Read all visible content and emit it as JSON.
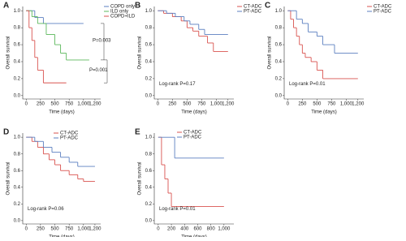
{
  "chart_data": [
    {
      "type": "line",
      "panel": "A",
      "xlabel": "Time (days)",
      "ylabel": "Overall survival",
      "xlim": [
        -60,
        1300
      ],
      "ylim": [
        -0.04,
        1.05
      ],
      "xticks": [
        0,
        250,
        500,
        750,
        {
          "value": 1000,
          "label": "1,000"
        },
        {
          "value": 1200,
          "label": "1,200"
        }
      ],
      "yticks": [
        {
          "value": 0,
          "label": "0.0"
        },
        0.2,
        0.4,
        0.6,
        0.8,
        {
          "value": 1,
          "label": "1.0"
        }
      ],
      "annotations": [
        "P=0.003",
        "P=0.001"
      ],
      "series": [
        {
          "name": "COPD only",
          "color": "#5b7fc0",
          "x": [
            0,
            150,
            300,
            1000
          ],
          "values": [
            1,
            0.92,
            0.85,
            0.85
          ]
        },
        {
          "name": "ILD only",
          "color": "#5cb85c",
          "x": [
            0,
            100,
            200,
            350,
            500,
            600,
            700,
            1100
          ],
          "values": [
            1,
            0.93,
            0.85,
            0.72,
            0.6,
            0.5,
            0.42,
            0.42
          ]
        },
        {
          "name": "COPD+ILD",
          "color": "#d9534f",
          "x": [
            0,
            50,
            100,
            150,
            200,
            300,
            700
          ],
          "values": [
            1,
            0.8,
            0.65,
            0.45,
            0.3,
            0.15,
            0.15
          ]
        }
      ]
    },
    {
      "type": "line",
      "panel": "B",
      "xlabel": "Time (days)",
      "ylabel": "Overall survival",
      "xlim": [
        -60,
        1300
      ],
      "ylim": [
        -0.04,
        1.05
      ],
      "xticks": [
        0,
        250,
        500,
        750,
        {
          "value": 1000,
          "label": "1,000"
        },
        {
          "value": 1200,
          "label": "1,200"
        }
      ],
      "yticks": [
        {
          "value": 0,
          "label": "0.0"
        },
        0.2,
        0.4,
        0.6,
        0.8,
        {
          "value": 1,
          "label": "1.0"
        }
      ],
      "annotations": [
        "Log-rank P=0.17"
      ],
      "series": [
        {
          "name": "CT-ADC",
          "color": "#d9534f",
          "x": [
            0,
            100,
            250,
            400,
            500,
            600,
            700,
            850,
            950,
            1200
          ],
          "values": [
            1,
            0.97,
            0.93,
            0.88,
            0.8,
            0.76,
            0.7,
            0.62,
            0.52,
            0.52
          ]
        },
        {
          "name": "PT-ADC",
          "color": "#5b7fc0",
          "x": [
            0,
            150,
            300,
            450,
            550,
            700,
            800,
            1200
          ],
          "values": [
            1,
            0.97,
            0.93,
            0.88,
            0.84,
            0.78,
            0.72,
            0.72
          ]
        }
      ]
    },
    {
      "type": "line",
      "panel": "C",
      "xlabel": "Time (days)",
      "ylabel": "Overall survival",
      "xlim": [
        -60,
        1300
      ],
      "ylim": [
        -0.04,
        1.05
      ],
      "xticks": [
        0,
        250,
        500,
        750,
        {
          "value": 1000,
          "label": "1,000"
        },
        {
          "value": 1200,
          "label": "1,200"
        }
      ],
      "yticks": [
        {
          "value": 0,
          "label": "0.0"
        },
        0.2,
        0.4,
        0.6,
        0.8,
        {
          "value": 1,
          "label": "1.0"
        }
      ],
      "annotations": [
        "Log-rank P=0.01"
      ],
      "series": [
        {
          "name": "CT-ADC",
          "color": "#d9534f",
          "x": [
            0,
            50,
            100,
            150,
            200,
            250,
            300,
            400,
            500,
            600,
            1200
          ],
          "values": [
            1,
            0.9,
            0.8,
            0.7,
            0.6,
            0.5,
            0.45,
            0.4,
            0.3,
            0.2,
            0.2
          ]
        },
        {
          "name": "PT-ADC",
          "color": "#5b7fc0",
          "x": [
            0,
            150,
            250,
            350,
            500,
            600,
            800,
            1200
          ],
          "values": [
            1,
            0.9,
            0.85,
            0.75,
            0.7,
            0.6,
            0.5,
            0.5
          ]
        }
      ]
    },
    {
      "type": "line",
      "panel": "D",
      "xlabel": "Time (days)",
      "ylabel": "Overall survival",
      "xlim": [
        -60,
        1300
      ],
      "ylim": [
        -0.04,
        1.05
      ],
      "xticks": [
        0,
        250,
        500,
        750,
        {
          "value": 1000,
          "label": "1,000"
        },
        {
          "value": 1200,
          "label": "1,200"
        }
      ],
      "yticks": [
        {
          "value": 0,
          "label": "0.0"
        },
        0.2,
        0.4,
        0.6,
        0.8,
        {
          "value": 1,
          "label": "1.0"
        }
      ],
      "annotations": [
        "Log-rank P=0.06"
      ],
      "series": [
        {
          "name": "CT-ADC",
          "color": "#d9534f",
          "x": [
            0,
            100,
            200,
            300,
            400,
            500,
            600,
            750,
            900,
            1000,
            1200
          ],
          "values": [
            1,
            0.95,
            0.88,
            0.8,
            0.73,
            0.67,
            0.6,
            0.55,
            0.5,
            0.47,
            0.47
          ]
        },
        {
          "name": "PT-ADC",
          "color": "#5b7fc0",
          "x": [
            0,
            150,
            300,
            450,
            600,
            750,
            900,
            1200
          ],
          "values": [
            1,
            0.95,
            0.88,
            0.82,
            0.76,
            0.7,
            0.65,
            0.65
          ]
        }
      ]
    },
    {
      "type": "line",
      "panel": "E",
      "xlabel": "Time (days)",
      "ylabel": "Overall survival",
      "xlim": [
        -60,
        1150
      ],
      "ylim": [
        -0.04,
        1.05
      ],
      "xticks": [
        0,
        200,
        400,
        600,
        800,
        {
          "value": 1000,
          "label": "1,000"
        }
      ],
      "yticks": [
        {
          "value": 0,
          "label": "0.0"
        },
        0.2,
        0.4,
        0.6,
        0.8,
        {
          "value": 1,
          "label": "1.0"
        }
      ],
      "annotations": [
        "Log-rank P=0.01"
      ],
      "series": [
        {
          "name": "CT-ADC",
          "color": "#d9534f",
          "x": [
            0,
            50,
            100,
            150,
            200,
            1000
          ],
          "values": [
            1,
            0.67,
            0.5,
            0.33,
            0.17,
            0.17
          ]
        },
        {
          "name": "PT-ADC",
          "color": "#5b7fc0",
          "x": [
            0,
            250,
            1000
          ],
          "values": [
            1,
            0.75,
            0.75
          ]
        }
      ]
    }
  ]
}
